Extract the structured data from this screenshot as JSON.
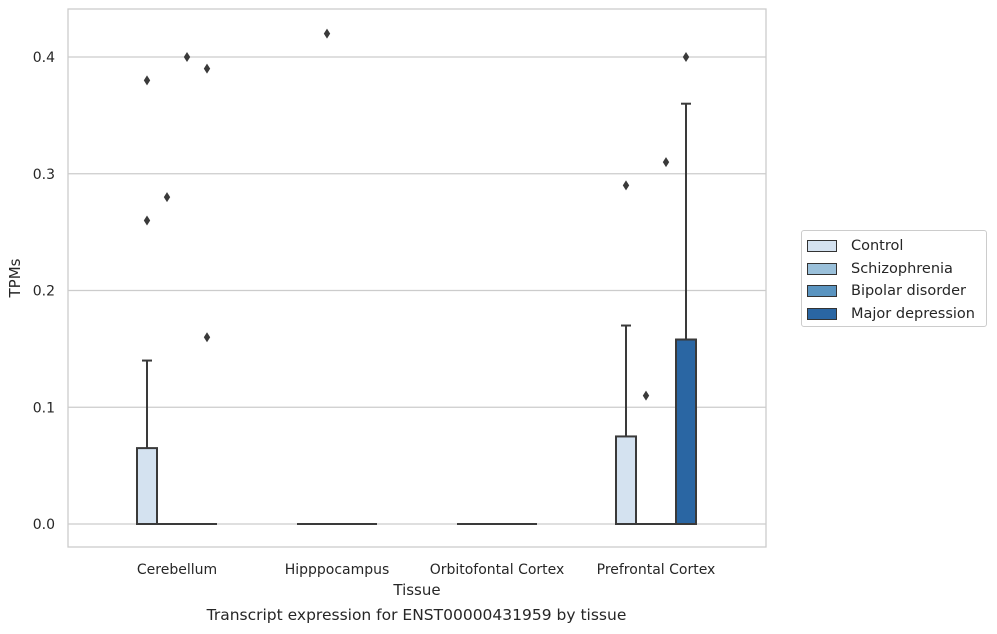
{
  "chart_data": {
    "type": "box",
    "title": "Transcript expression for ENST00000431959 by tissue",
    "xlabel": "Tissue",
    "ylabel": "TPMs",
    "ylim": [
      -0.02,
      0.44
    ],
    "yticks": [
      0.0,
      0.1,
      0.2,
      0.3,
      0.4
    ],
    "ytick_labels": [
      "0.0",
      "0.1",
      "0.2",
      "0.3",
      "0.4"
    ],
    "grid": "horizontal",
    "legend_position": "right",
    "categories": [
      "Cerebellum",
      "Hipppocampus",
      "Orbitofontal Cortex",
      "Prefrontal Cortex"
    ],
    "series": [
      {
        "name": "Control",
        "color": "#d4e2f0",
        "boxes": [
          {
            "q1": 0.0,
            "median": 0.0,
            "q3": 0.065,
            "whisker_low": 0.0,
            "whisker_high": 0.14,
            "outliers": [
              0.38,
              0.26
            ]
          },
          {
            "q1": 0.0,
            "median": 0.0,
            "q3": 0.0,
            "whisker_low": 0.0,
            "whisker_high": 0.0,
            "outliers": []
          },
          {
            "q1": 0.0,
            "median": 0.0,
            "q3": 0.0,
            "whisker_low": 0.0,
            "whisker_high": 0.0,
            "outliers": []
          },
          {
            "q1": 0.0,
            "median": 0.0,
            "q3": 0.075,
            "whisker_low": 0.0,
            "whisker_high": 0.17,
            "outliers": [
              0.29
            ]
          }
        ]
      },
      {
        "name": "Schizophrenia",
        "color": "#9ac0da",
        "boxes": [
          {
            "q1": 0.0,
            "median": 0.0,
            "q3": 0.0,
            "whisker_low": 0.0,
            "whisker_high": 0.0,
            "outliers": [
              0.28
            ]
          },
          {
            "q1": 0.0,
            "median": 0.0,
            "q3": 0.0,
            "whisker_low": 0.0,
            "whisker_high": 0.0,
            "outliers": [
              0.42
            ]
          },
          {
            "q1": 0.0,
            "median": 0.0,
            "q3": 0.0,
            "whisker_low": 0.0,
            "whisker_high": 0.0,
            "outliers": []
          },
          {
            "q1": 0.0,
            "median": 0.0,
            "q3": 0.0,
            "whisker_low": 0.0,
            "whisker_high": 0.0,
            "outliers": [
              0.11
            ]
          }
        ]
      },
      {
        "name": "Bipolar disorder",
        "color": "#5a94c0",
        "boxes": [
          {
            "q1": 0.0,
            "median": 0.0,
            "q3": 0.0,
            "whisker_low": 0.0,
            "whisker_high": 0.0,
            "outliers": [
              0.4
            ]
          },
          {
            "q1": 0.0,
            "median": 0.0,
            "q3": 0.0,
            "whisker_low": 0.0,
            "whisker_high": 0.0,
            "outliers": []
          },
          {
            "q1": 0.0,
            "median": 0.0,
            "q3": 0.0,
            "whisker_low": 0.0,
            "whisker_high": 0.0,
            "outliers": []
          },
          {
            "q1": 0.0,
            "median": 0.0,
            "q3": 0.0,
            "whisker_low": 0.0,
            "whisker_high": 0.0,
            "outliers": [
              0.31
            ]
          }
        ]
      },
      {
        "name": "Major depression",
        "color": "#2a66a3",
        "boxes": [
          {
            "q1": 0.0,
            "median": 0.0,
            "q3": 0.0,
            "whisker_low": 0.0,
            "whisker_high": 0.0,
            "outliers": [
              0.39,
              0.16
            ]
          },
          {
            "q1": 0.0,
            "median": 0.0,
            "q3": 0.0,
            "whisker_low": 0.0,
            "whisker_high": 0.0,
            "outliers": []
          },
          {
            "q1": 0.0,
            "median": 0.0,
            "q3": 0.0,
            "whisker_low": 0.0,
            "whisker_high": 0.0,
            "outliers": []
          },
          {
            "q1": 0.0,
            "median": 0.158,
            "q3": 0.158,
            "whisker_low": 0.0,
            "whisker_high": 0.36,
            "outliers": [
              0.4
            ]
          }
        ]
      }
    ]
  }
}
